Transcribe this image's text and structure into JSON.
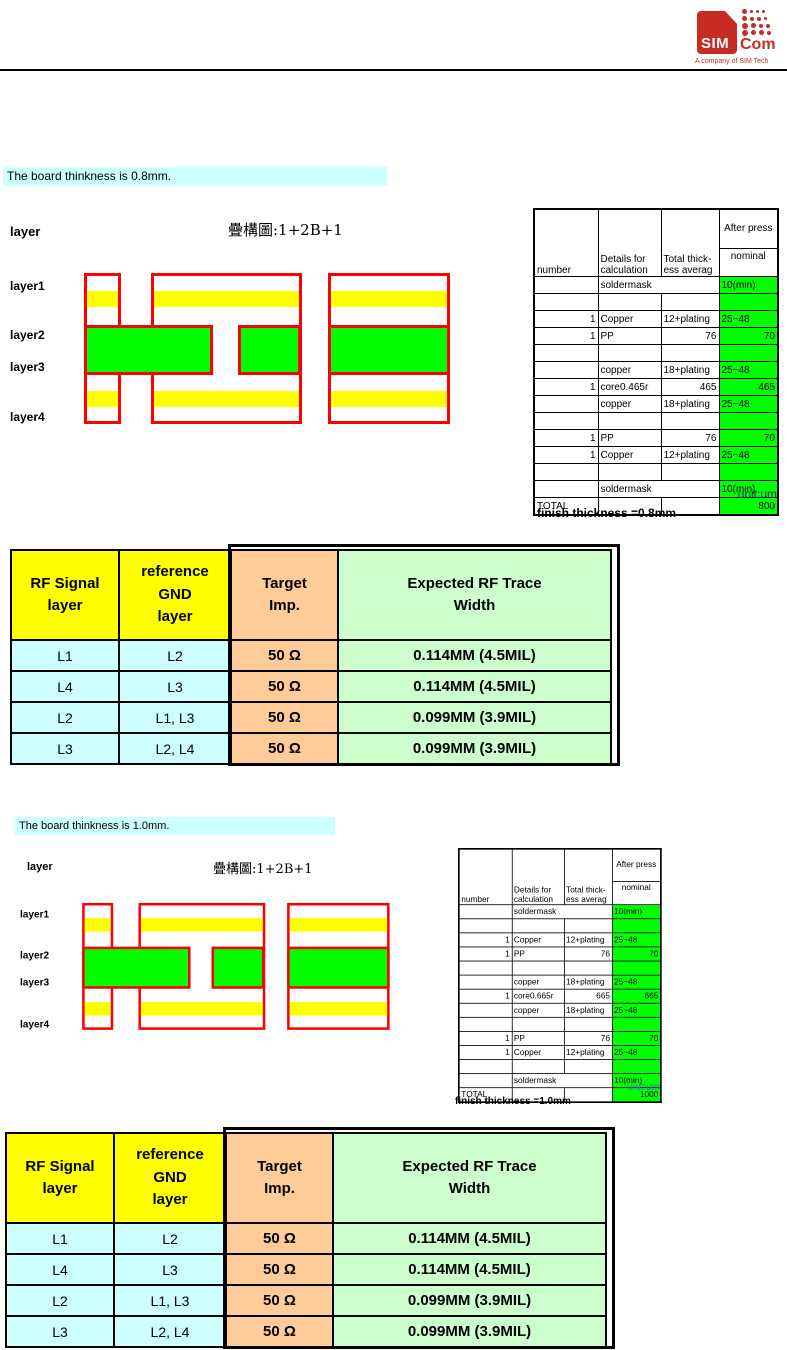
{
  "logo": {
    "sim": "SIM",
    "com": "Com",
    "tagline": "A company of SIM Tech",
    "brand_color": "#C62C22"
  },
  "colors": {
    "banner_cyan": "#CCFFFF",
    "diagram_red": "#FF0000",
    "copper_yellow": "#FFFF00",
    "core_green": "#00FF00",
    "rf_cyan": "#CCFFFF",
    "rf_orange": "#FFCC99",
    "rf_green": "#CCFFCC",
    "unit_blue_1": "#17375E",
    "unit_blue_2": "#4472C4"
  },
  "sections": [
    {
      "banner": "The board thinkness is 0.8mm.",
      "layer_title": "layer",
      "stack_title": "疊構圖:1+2B+1",
      "diagram": {
        "layers": [
          "layer1",
          "layer2",
          "layer3",
          "layer4"
        ]
      },
      "stackup_table": {
        "header": {
          "col1": "number",
          "col2": "Details for\ncalculation",
          "col3": "Total thick-\ness averag",
          "col4_top": "After press",
          "col4_bottom": "nominal"
        },
        "rows": [
          [
            "",
            "soldermask",
            "",
            "10(min)"
          ],
          [
            "",
            "",
            "",
            ""
          ],
          [
            "1",
            "Copper",
            "12+plating",
            "25~48"
          ],
          [
            "1",
            "PP",
            "76",
            "70"
          ],
          [
            "",
            "",
            "",
            ""
          ],
          [
            "",
            "copper",
            "18+plating",
            "25~48"
          ],
          [
            "1",
            "core0.465r",
            "465",
            "465"
          ],
          [
            "",
            "copper",
            "18+plating",
            "25~48"
          ],
          [
            "",
            "",
            "",
            ""
          ],
          [
            "1",
            "PP",
            "76",
            "70"
          ],
          [
            "1",
            "Copper",
            "12+plating",
            "25~48"
          ],
          [
            "",
            "",
            "",
            ""
          ],
          [
            "",
            "soldermask",
            "",
            "10(min)"
          ],
          [
            "TOTAL",
            "",
            "",
            "800"
          ]
        ],
        "unit": "unit:um",
        "finish": "finish thickness =0.8mm"
      },
      "rf_table": {
        "headers": [
          "RF Signal\nlayer",
          "reference\nGND\nlayer",
          "Target\nImp.",
          "Expected RF Trace\nWidth"
        ],
        "rows": [
          [
            "L1",
            "L2",
            "50 Ω",
            "0.114MM (4.5MIL)"
          ],
          [
            "L4",
            "L3",
            "50 Ω",
            "0.114MM (4.5MIL)"
          ],
          [
            "L2",
            "L1, L3",
            "50 Ω",
            "0.099MM (3.9MIL)"
          ],
          [
            "L3",
            "L2, L4",
            "50 Ω",
            "0.099MM (3.9MIL)"
          ]
        ]
      }
    },
    {
      "banner": "The board thinkness is 1.0mm.",
      "layer_title": "layer",
      "stack_title": "疊構圖:1+2B+1",
      "diagram": {
        "layers": [
          "layer1",
          "layer2",
          "layer3",
          "layer4"
        ]
      },
      "stackup_table": {
        "header": {
          "col1": "number",
          "col2": "Details for\ncalculation",
          "col3": "Total thick-\ness averag",
          "col4_top": "After press",
          "col4_bottom": "nominal"
        },
        "rows": [
          [
            "",
            "soldermask",
            "",
            "10(min)"
          ],
          [
            "",
            "",
            "",
            ""
          ],
          [
            "1",
            "Copper",
            "12+plating",
            "25~48"
          ],
          [
            "1",
            "PP",
            "76",
            "70"
          ],
          [
            "",
            "",
            "",
            ""
          ],
          [
            "",
            "copper",
            "18+plating",
            "25~48"
          ],
          [
            "1",
            "core0.665r",
            "665",
            "665"
          ],
          [
            "",
            "copper",
            "18+plating",
            "25~48"
          ],
          [
            "",
            "",
            "",
            ""
          ],
          [
            "1",
            "PP",
            "76",
            "70"
          ],
          [
            "1",
            "Copper",
            "12+plating",
            "25~48"
          ],
          [
            "",
            "",
            "",
            ""
          ],
          [
            "",
            "soldermask",
            "",
            "10(min)"
          ],
          [
            "TOTAL",
            "",
            "",
            "1000"
          ]
        ],
        "unit": "unit:um",
        "finish": "finish thickness =1.0mm"
      },
      "rf_table": {
        "headers": [
          "RF Signal\nlayer",
          "reference\nGND\nlayer",
          "Target\nImp.",
          "Expected RF Trace\nWidth"
        ],
        "rows": [
          [
            "L1",
            "L2",
            "50 Ω",
            "0.114MM (4.5MIL)"
          ],
          [
            "L4",
            "L3",
            "50 Ω",
            "0.114MM (4.5MIL)"
          ],
          [
            "L2",
            "L1, L3",
            "50 Ω",
            "0.099MM (3.9MIL)"
          ],
          [
            "L3",
            "L2, L4",
            "50 Ω",
            "0.099MM (3.9MIL)"
          ]
        ]
      }
    }
  ]
}
